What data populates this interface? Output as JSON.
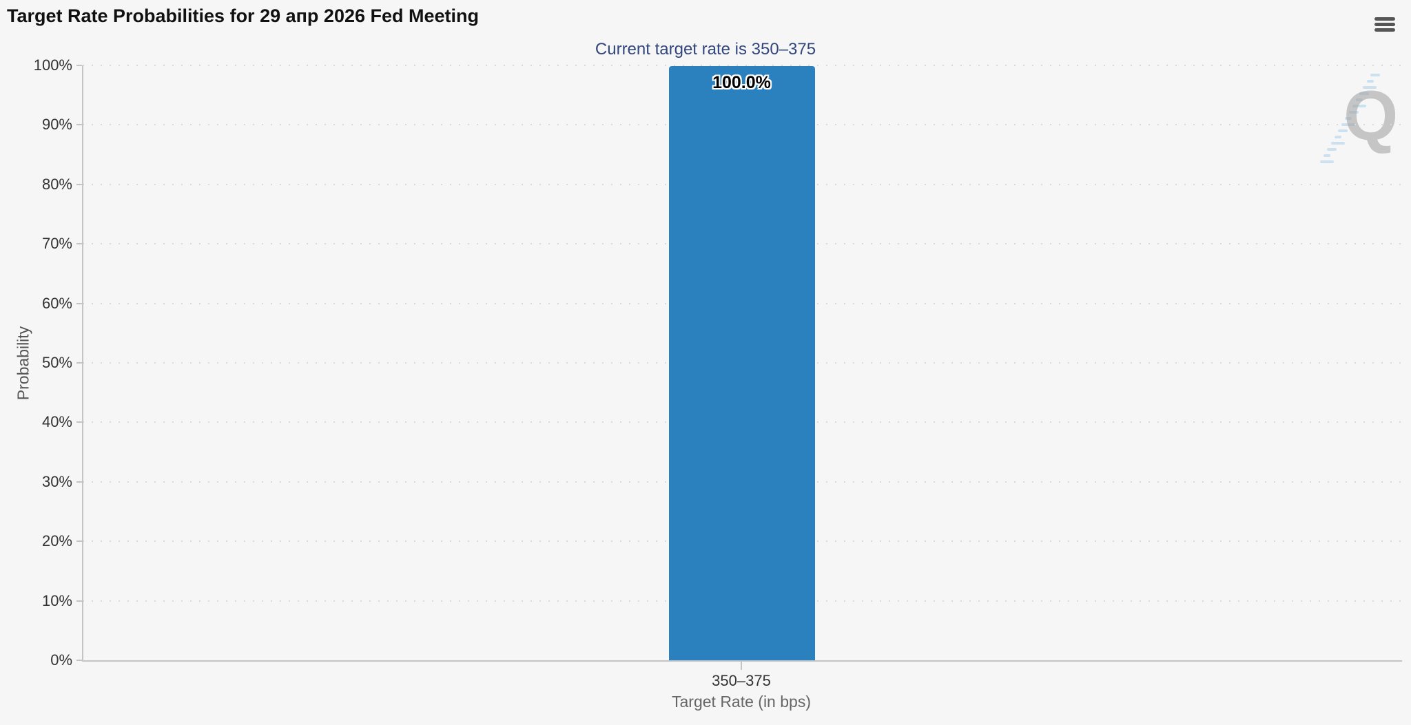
{
  "chart_data": {
    "type": "bar",
    "title": "Target Rate Probabilities for 29 апр 2026 Fed Meeting",
    "subtitle": "Current target rate is 350–375",
    "categories": [
      "350–375"
    ],
    "values": [
      100.0
    ],
    "data_labels": [
      "100.0%"
    ],
    "xlabel": "Target Rate (in bps)",
    "ylabel": "Probability",
    "ylim": [
      0,
      100
    ],
    "ytick_labels": [
      "0%",
      "10%",
      "20%",
      "30%",
      "40%",
      "50%",
      "60%",
      "70%",
      "80%",
      "90%",
      "100%"
    ],
    "grid": "dotted-horizontal",
    "legend": "none",
    "bar_color": "#2b81bd"
  },
  "toolbar": {
    "context_menu_icon": "hamburger-menu-icon"
  },
  "watermark": {
    "letter": "Q"
  },
  "colors": {
    "background": "#f6f6f6",
    "bar": "#2b81bd",
    "subtitle_text": "#32467c",
    "axis_line": "#c4c4c4",
    "grid_dot": "#d9d9d9",
    "tick_label": "#333333",
    "axis_title": "#666666",
    "menu_icon": "#555555",
    "watermark_q": "#9e9e9e",
    "watermark_dash": "#a9cfe9"
  }
}
